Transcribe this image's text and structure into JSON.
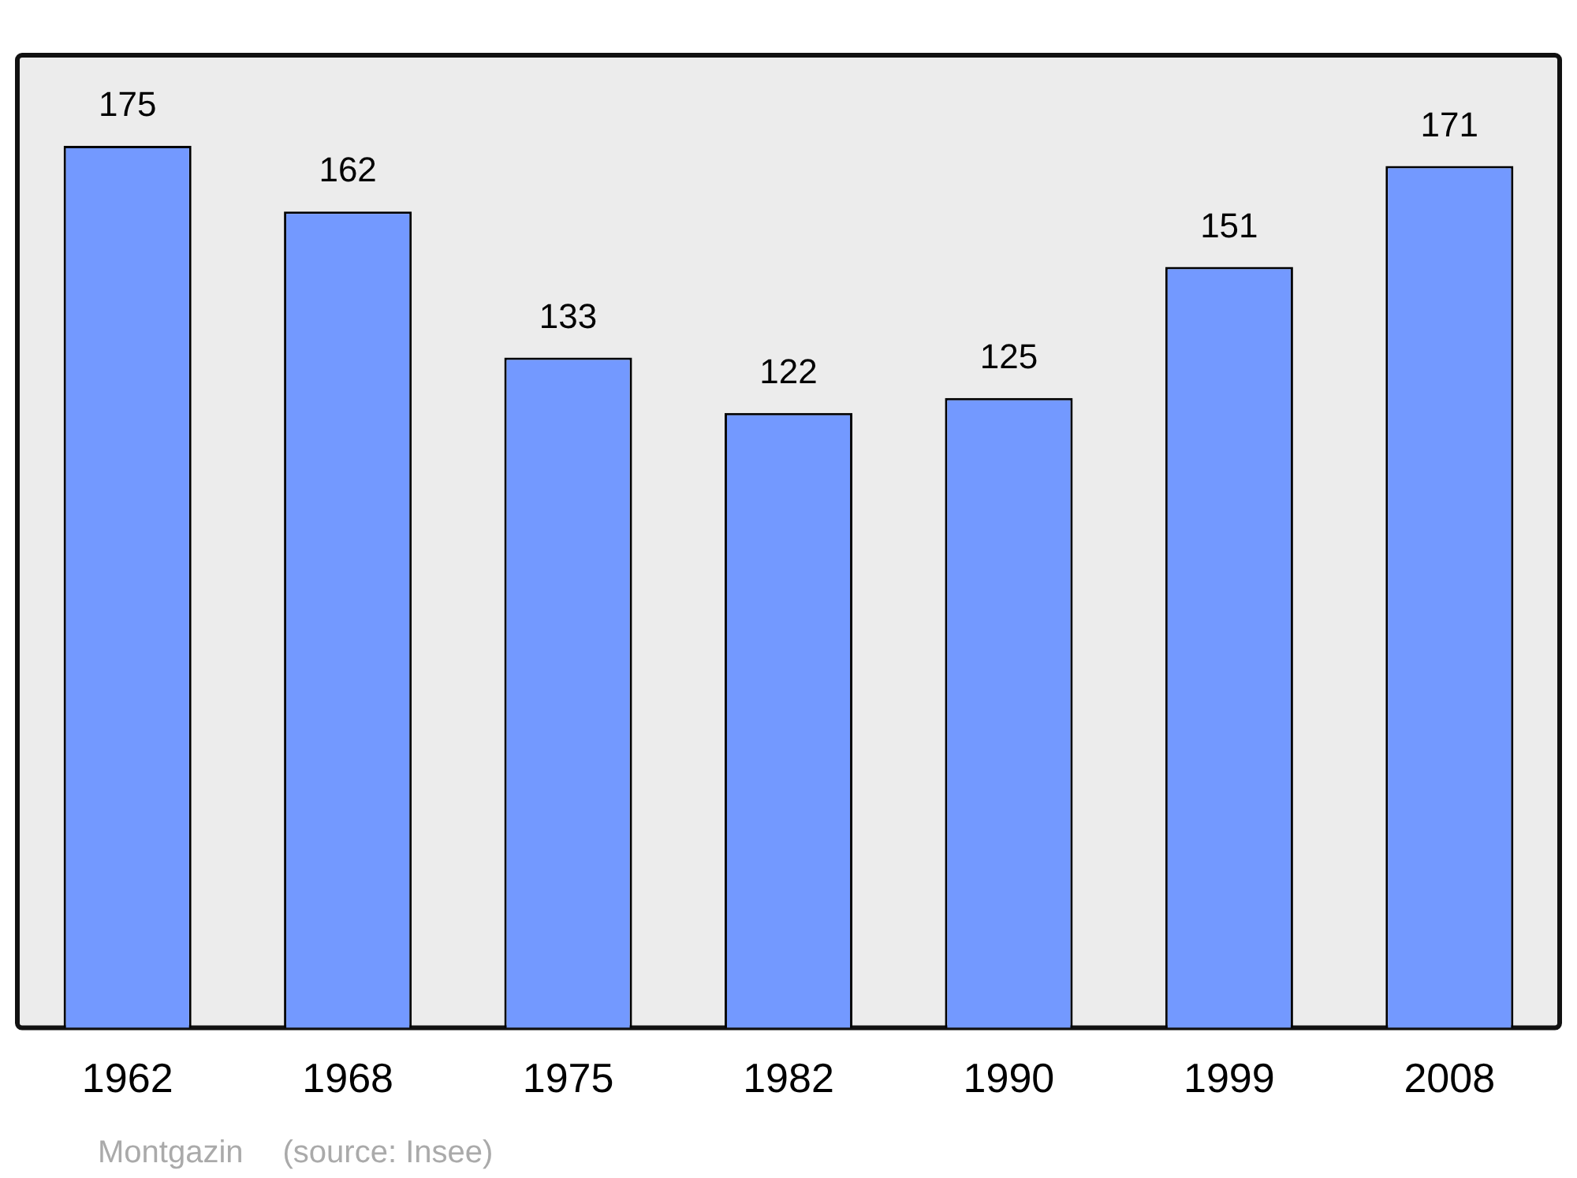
{
  "chart_data": {
    "type": "bar",
    "categories": [
      "1962",
      "1968",
      "1975",
      "1982",
      "1990",
      "1999",
      "2008"
    ],
    "values": [
      175,
      162,
      133,
      122,
      125,
      151,
      171
    ],
    "color": "#7399ff",
    "ylim": [
      0,
      193
    ],
    "data_labels": true,
    "grid": false,
    "legend": false,
    "annotations": [
      "Montgazin",
      "(source: Insee)"
    ]
  }
}
